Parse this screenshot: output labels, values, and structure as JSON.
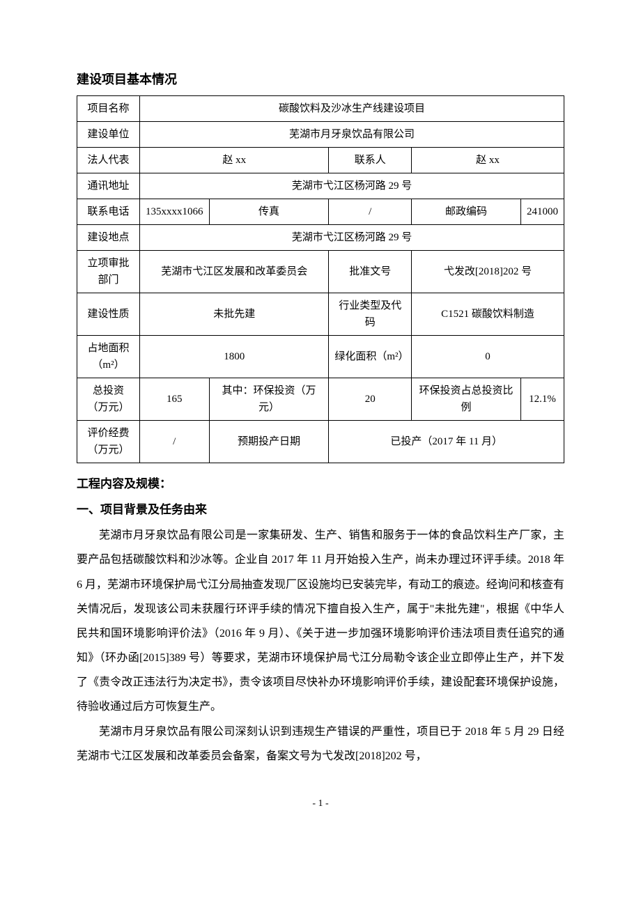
{
  "section_title": "建设项目基本情况",
  "table": {
    "row1": {
      "label": "项目名称",
      "value": "碳酸饮料及沙冰生产线建设项目"
    },
    "row2": {
      "label": "建设单位",
      "value": "芜湖市月牙泉饮品有限公司"
    },
    "row3": {
      "label1": "法人代表",
      "value1": "赵 xx",
      "label2": "联系人",
      "value2": "赵 xx"
    },
    "row4": {
      "label": "通讯地址",
      "value": "芜湖市弋江区杨河路 29 号"
    },
    "row5": {
      "label1": "联系电话",
      "value1": "135xxxx1066",
      "label2": "传真",
      "value2": "/",
      "label3": "邮政编码",
      "value3": "241000"
    },
    "row6": {
      "label": "建设地点",
      "value": "芜湖市弋江区杨河路 29 号"
    },
    "row7": {
      "label1": "立项审批部门",
      "value1": "芜湖市弋江区发展和改革委员会",
      "label2": "批准文号",
      "value2": "弋发改[2018]202 号"
    },
    "row8": {
      "label1": "建设性质",
      "value1": "未批先建",
      "label2": "行业类型及代码",
      "value2": "C1521 碳酸饮料制造"
    },
    "row9": {
      "label1": "占地面积（m²）",
      "value1": "1800",
      "label2": "绿化面积（m²）",
      "value2": "0"
    },
    "row10": {
      "label1": "总投资（万元）",
      "value1": "165",
      "label2": "其中：环保投资（万元）",
      "value2": "20",
      "label3": "环保投资占总投资比例",
      "value3": "12.1%"
    },
    "row11": {
      "label1": "评价经费（万元）",
      "value1": "/",
      "label2": "预期投产日期",
      "value2": "已投产（2017 年 11 月）"
    }
  },
  "content_heading": "工程内容及规模：",
  "sub_heading_1": "一、项目背景及任务由来",
  "paragraph_1": "芜湖市月牙泉饮品有限公司是一家集研发、生产、销售和服务于一体的食品饮料生产厂家，主要产品包括碳酸饮料和沙冰等。企业自 2017 年 11 月开始投入生产，尚未办理过环评手续。2018 年 6 月，芜湖市环境保护局弋江分局抽查发现厂区设施均已安装完毕，有动工的痕迹。经询问和核查有关情况后，发现该公司未获履行环评手续的情况下擅自投入生产，属于\"未批先建\"，根据《中华人民共和国环境影响评价法》（2016 年 9 月）、《关于进一步加强环境影响评价违法项目责任追究的通知》（环办函[2015]389 号）等要求，芜湖市环境保护局弋江分局勒令该企业立即停止生产，并下发了《责令改正违法行为决定书》，责令该项目尽快补办环境影响评价手续，建设配套环境保护设施，待验收通过后方可恢复生产。",
  "paragraph_2": "芜湖市月牙泉饮品有限公司深刻认识到违规生产错误的严重性，项目已于 2018 年 5 月 29 日经芜湖市弋江区发展和改革委员会备案，备案文号为弋发改[2018]202 号，",
  "page_number": "- 1 -"
}
